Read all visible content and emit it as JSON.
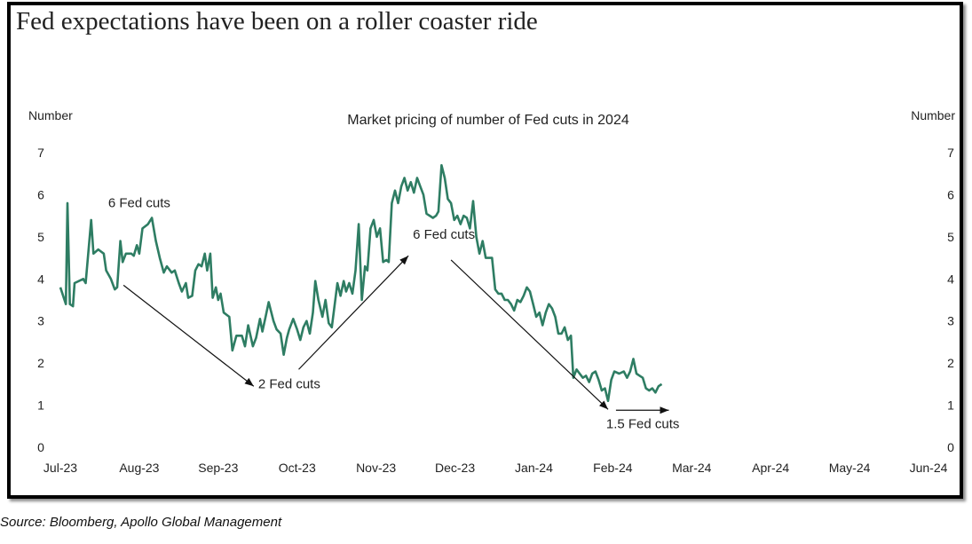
{
  "headline": "Fed expectations have been on a roller coaster ride",
  "source": "Source: Bloomberg, Apollo Global Management",
  "colors": {
    "series": "#2e7d63",
    "arrow": "#111111",
    "text": "#222222"
  },
  "chart_data": {
    "type": "line",
    "title": "Market pricing of number of Fed cuts in 2024",
    "ylabel_left": "Number",
    "ylabel_right": "Number",
    "ylim": [
      0,
      7
    ],
    "yticks": [
      0,
      1,
      2,
      3,
      4,
      5,
      6,
      7
    ],
    "xtick_labels": [
      "Jul-23",
      "Aug-23",
      "Sep-23",
      "Oct-23",
      "Nov-23",
      "Dec-23",
      "Jan-24",
      "Feb-24",
      "Mar-24",
      "Apr-24",
      "May-24",
      "Jun-24"
    ],
    "grid": false,
    "series": [
      {
        "points": [
          [
            0,
            3.8
          ],
          [
            0.07,
            3.4
          ],
          [
            0.09,
            5.8
          ],
          [
            0.12,
            3.4
          ],
          [
            0.16,
            3.35
          ],
          [
            0.18,
            3.9
          ],
          [
            0.29,
            4.0
          ],
          [
            0.32,
            3.9
          ],
          [
            0.39,
            5.4
          ],
          [
            0.42,
            4.6
          ],
          [
            0.48,
            4.7
          ],
          [
            0.55,
            4.6
          ],
          [
            0.58,
            4.2
          ],
          [
            0.64,
            4.0
          ],
          [
            0.69,
            3.75
          ],
          [
            0.72,
            3.8
          ],
          [
            0.76,
            4.9
          ],
          [
            0.79,
            4.4
          ],
          [
            0.83,
            4.6
          ],
          [
            0.9,
            4.6
          ],
          [
            0.93,
            4.55
          ],
          [
            0.97,
            4.8
          ],
          [
            1.0,
            4.6
          ],
          [
            1.04,
            5.2
          ],
          [
            1.11,
            5.3
          ],
          [
            1.16,
            5.45
          ],
          [
            1.21,
            4.9
          ],
          [
            1.26,
            4.5
          ],
          [
            1.31,
            4.15
          ],
          [
            1.35,
            4.3
          ],
          [
            1.41,
            4.15
          ],
          [
            1.45,
            4.2
          ],
          [
            1.5,
            3.9
          ],
          [
            1.54,
            3.7
          ],
          [
            1.59,
            3.9
          ],
          [
            1.62,
            3.55
          ],
          [
            1.67,
            3.6
          ],
          [
            1.71,
            4.2
          ],
          [
            1.75,
            4.35
          ],
          [
            1.79,
            4.3
          ],
          [
            1.83,
            4.6
          ],
          [
            1.86,
            4.2
          ],
          [
            1.9,
            4.6
          ],
          [
            1.93,
            3.55
          ],
          [
            1.97,
            3.8
          ],
          [
            2.0,
            3.5
          ],
          [
            2.03,
            3.65
          ],
          [
            2.07,
            3.2
          ],
          [
            2.14,
            3.1
          ],
          [
            2.18,
            2.3
          ],
          [
            2.23,
            2.65
          ],
          [
            2.3,
            2.65
          ],
          [
            2.34,
            2.4
          ],
          [
            2.38,
            2.9
          ],
          [
            2.44,
            2.4
          ],
          [
            2.48,
            2.6
          ],
          [
            2.53,
            3.05
          ],
          [
            2.56,
            2.75
          ],
          [
            2.6,
            3.1
          ],
          [
            2.64,
            3.45
          ],
          [
            2.7,
            3.0
          ],
          [
            2.74,
            2.8
          ],
          [
            2.79,
            2.7
          ],
          [
            2.83,
            2.2
          ],
          [
            2.87,
            2.6
          ],
          [
            2.9,
            2.8
          ],
          [
            2.95,
            3.05
          ],
          [
            3.0,
            2.8
          ],
          [
            3.04,
            2.55
          ],
          [
            3.08,
            2.85
          ],
          [
            3.12,
            3.0
          ],
          [
            3.16,
            2.7
          ],
          [
            3.2,
            3.2
          ],
          [
            3.23,
            3.95
          ],
          [
            3.27,
            3.5
          ],
          [
            3.32,
            3.1
          ],
          [
            3.36,
            3.5
          ],
          [
            3.4,
            2.95
          ],
          [
            3.44,
            2.85
          ],
          [
            3.47,
            3.3
          ],
          [
            3.51,
            3.9
          ],
          [
            3.55,
            3.6
          ],
          [
            3.59,
            3.95
          ],
          [
            3.62,
            3.7
          ],
          [
            3.66,
            3.9
          ],
          [
            3.7,
            3.65
          ],
          [
            3.74,
            4.2
          ],
          [
            3.78,
            5.3
          ],
          [
            3.82,
            3.5
          ],
          [
            3.86,
            4.3
          ],
          [
            3.89,
            4.2
          ],
          [
            3.93,
            5.2
          ],
          [
            3.97,
            5.4
          ],
          [
            4.01,
            5.0
          ],
          [
            4.05,
            5.2
          ],
          [
            4.09,
            4.4
          ],
          [
            4.13,
            4.45
          ],
          [
            4.16,
            4.4
          ],
          [
            4.2,
            5.8
          ],
          [
            4.24,
            6.1
          ],
          [
            4.28,
            5.8
          ],
          [
            4.32,
            6.2
          ],
          [
            4.36,
            6.4
          ],
          [
            4.4,
            6.1
          ],
          [
            4.44,
            6.3
          ],
          [
            4.48,
            6.05
          ],
          [
            4.52,
            6.4
          ],
          [
            4.56,
            6.2
          ],
          [
            4.6,
            6.0
          ],
          [
            4.64,
            5.55
          ],
          [
            4.68,
            5.5
          ],
          [
            4.72,
            5.45
          ],
          [
            4.76,
            5.5
          ],
          [
            4.79,
            5.6
          ],
          [
            4.83,
            6.7
          ],
          [
            4.87,
            6.4
          ],
          [
            4.91,
            5.9
          ],
          [
            4.95,
            5.8
          ],
          [
            4.99,
            5.4
          ],
          [
            5.03,
            5.5
          ],
          [
            5.07,
            5.3
          ],
          [
            5.11,
            5.5
          ],
          [
            5.15,
            5.45
          ],
          [
            5.19,
            5.2
          ],
          [
            5.23,
            5.85
          ],
          [
            5.27,
            5.0
          ],
          [
            5.31,
            4.6
          ],
          [
            5.35,
            4.9
          ],
          [
            5.39,
            4.5
          ],
          [
            5.43,
            4.5
          ],
          [
            5.47,
            4.5
          ],
          [
            5.51,
            3.75
          ],
          [
            5.55,
            3.65
          ],
          [
            5.59,
            3.65
          ],
          [
            5.63,
            3.5
          ],
          [
            5.67,
            3.5
          ],
          [
            5.71,
            3.4
          ],
          [
            5.75,
            3.25
          ],
          [
            5.79,
            3.5
          ],
          [
            5.83,
            3.45
          ],
          [
            5.87,
            3.6
          ],
          [
            5.91,
            3.8
          ],
          [
            5.95,
            3.7
          ],
          [
            5.99,
            3.4
          ],
          [
            6.03,
            3.1
          ],
          [
            6.07,
            3.2
          ],
          [
            6.11,
            2.9
          ],
          [
            6.15,
            3.2
          ],
          [
            6.19,
            3.4
          ],
          [
            6.23,
            3.3
          ],
          [
            6.27,
            3.1
          ],
          [
            6.31,
            2.7
          ],
          [
            6.35,
            2.7
          ],
          [
            6.39,
            2.85
          ],
          [
            6.43,
            2.55
          ],
          [
            6.47,
            2.65
          ],
          [
            6.5,
            1.65
          ],
          [
            6.54,
            1.85
          ],
          [
            6.58,
            1.75
          ],
          [
            6.62,
            1.65
          ],
          [
            6.66,
            1.7
          ],
          [
            6.7,
            1.55
          ],
          [
            6.74,
            1.75
          ],
          [
            6.78,
            1.8
          ],
          [
            6.82,
            1.6
          ],
          [
            6.86,
            1.35
          ],
          [
            6.9,
            1.4
          ],
          [
            6.94,
            1.1
          ],
          [
            6.98,
            1.6
          ],
          [
            7.02,
            1.8
          ],
          [
            7.08,
            1.75
          ],
          [
            7.14,
            1.8
          ],
          [
            7.18,
            1.65
          ],
          [
            7.22,
            1.8
          ],
          [
            7.26,
            2.1
          ],
          [
            7.3,
            1.75
          ],
          [
            7.34,
            1.7
          ],
          [
            7.38,
            1.65
          ],
          [
            7.42,
            1.4
          ],
          [
            7.46,
            1.35
          ],
          [
            7.5,
            1.4
          ],
          [
            7.54,
            1.3
          ],
          [
            7.58,
            1.45
          ],
          [
            7.62,
            1.5
          ]
        ]
      }
    ],
    "annotations": [
      {
        "text": "6 Fed cuts",
        "at": [
          1.0,
          5.7
        ]
      },
      {
        "text": "2 Fed cuts",
        "at": [
          2.9,
          1.4
        ]
      },
      {
        "text": "6 Fed cuts",
        "at": [
          4.86,
          4.95
        ]
      },
      {
        "text": "1.5 Fed cuts",
        "at": [
          7.38,
          0.45
        ]
      }
    ],
    "arrows": [
      {
        "from": [
          0.8,
          3.85
        ],
        "to": [
          2.45,
          1.45
        ]
      },
      {
        "from": [
          3.02,
          1.85
        ],
        "to": [
          4.41,
          4.55
        ]
      },
      {
        "from": [
          4.95,
          4.45
        ],
        "to": [
          6.94,
          0.9
        ]
      },
      {
        "from": [
          7.04,
          0.88
        ],
        "to": [
          7.71,
          0.88
        ]
      }
    ]
  }
}
